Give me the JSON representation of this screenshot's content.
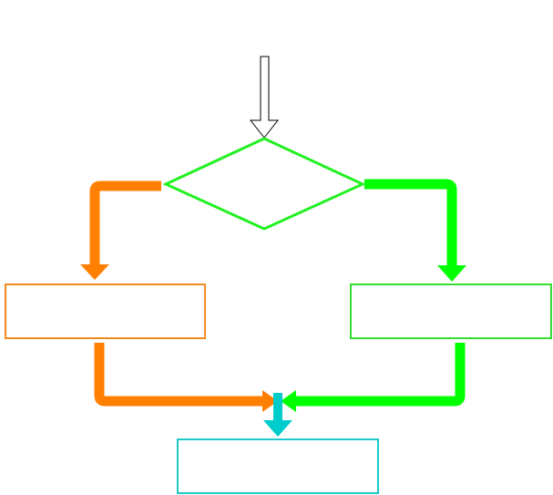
{
  "diagram": {
    "type": "flowchart",
    "nodes": [
      {
        "id": "decision",
        "shape": "diamond",
        "label": ""
      },
      {
        "id": "left-box",
        "shape": "rectangle",
        "label": ""
      },
      {
        "id": "right-box",
        "shape": "rectangle",
        "label": ""
      },
      {
        "id": "bottom-box",
        "shape": "rectangle",
        "label": ""
      }
    ],
    "edges": [
      {
        "from": "entry",
        "to": "decision",
        "style": "hollow-arrow"
      },
      {
        "from": "decision",
        "to": "left-box",
        "color": "orange"
      },
      {
        "from": "decision",
        "to": "right-box",
        "color": "green"
      },
      {
        "from": "left-box",
        "to": "merge",
        "color": "orange"
      },
      {
        "from": "right-box",
        "to": "merge",
        "color": "green"
      },
      {
        "from": "merge",
        "to": "bottom-box",
        "color": "cyan"
      }
    ],
    "colors": {
      "orange": "#ff8000",
      "green": "#00ff00",
      "cyan": "#00cccc",
      "entry_arrow": "#000000"
    }
  }
}
